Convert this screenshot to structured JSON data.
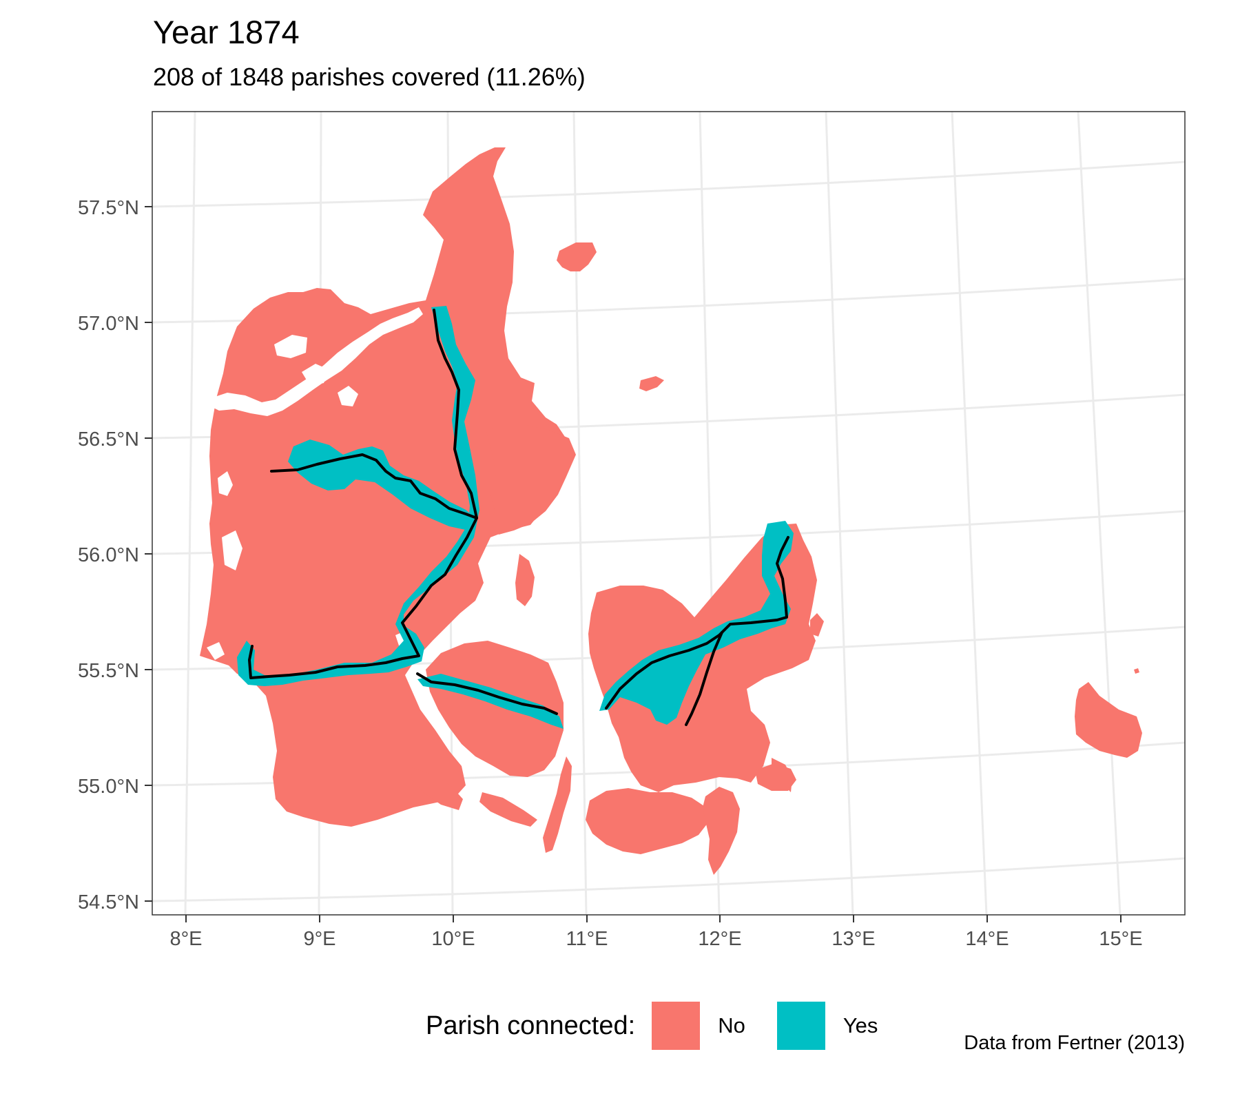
{
  "title": "Year 1874",
  "subtitle": "208 of 1848 parishes covered (11.26%)",
  "caption": "Data from Fertner (2013)",
  "legend": {
    "title": "Parish connected:",
    "items": [
      {
        "label": "No",
        "color": "#F8766D"
      },
      {
        "label": "Yes",
        "color": "#00BFC4"
      }
    ]
  },
  "axes": {
    "x_ticks": [
      "8°E",
      "9°E",
      "10°E",
      "11°E",
      "12°E",
      "13°E",
      "14°E",
      "15°E"
    ],
    "y_ticks": [
      "57.5°N",
      "57.0°N",
      "56.5°N",
      "56.0°N",
      "55.5°N",
      "55.0°N",
      "54.5°N"
    ]
  },
  "colors": {
    "not_connected": "#F8766D",
    "connected": "#00BFC4",
    "railway": "#000000",
    "grid": "#EBEBEB",
    "panel_border": "#333333"
  }
}
